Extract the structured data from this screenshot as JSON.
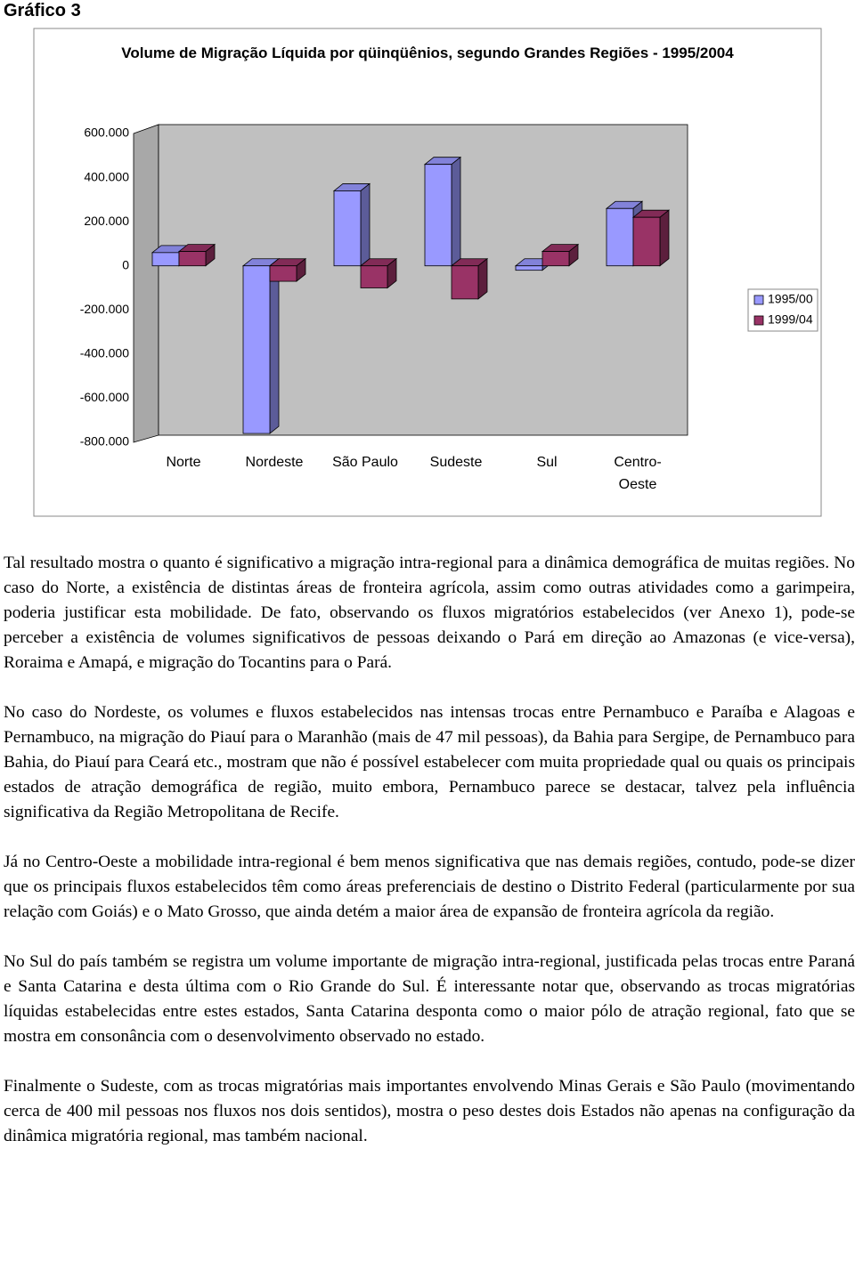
{
  "heading": "Gráfico 3",
  "chart_data": {
    "type": "bar3d",
    "title": "Volume de Migração Líquida por qüinqüênios, segundo Grandes Regiões - 1995/2004",
    "categories": [
      "Norte",
      "Nordeste",
      "São Paulo",
      "Sudeste",
      "Sul",
      "Centro-Oeste"
    ],
    "series": [
      {
        "name": "1995/00",
        "color": "#9999ff",
        "values": [
          60000,
          -760000,
          340000,
          460000,
          -20000,
          260000
        ]
      },
      {
        "name": "1999/04",
        "color": "#993366",
        "values": [
          65000,
          -70000,
          -100000,
          -150000,
          65000,
          220000
        ]
      }
    ],
    "ylim": [
      -800000,
      600000
    ],
    "yticks": [
      {
        "value": -800000,
        "label": "-800.000"
      },
      {
        "value": -600000,
        "label": "-600.000"
      },
      {
        "value": -400000,
        "label": "-400.000"
      },
      {
        "value": -200000,
        "label": "-200.000"
      },
      0,
      {
        "value": 200000,
        "label": "200.000"
      },
      {
        "value": 400000,
        "label": "400.000"
      },
      {
        "value": 600000,
        "label": "600.000"
      }
    ],
    "grid": false,
    "legend": "right"
  },
  "paragraphs": [
    "Tal resultado mostra o quanto é significativo a migração intra-regional para a dinâmica demográfica de muitas regiões. No caso do Norte, a existência de distintas áreas de fronteira agrícola, assim como outras atividades como a garimpeira, poderia justificar esta mobilidade. De fato, observando os fluxos migratórios estabelecidos (ver Anexo 1), pode-se perceber a existência de volumes significativos de pessoas deixando o Pará em direção ao Amazonas (e vice-versa), Roraima e Amapá, e migração do Tocantins para o Pará.",
    "No caso do Nordeste, os volumes e fluxos estabelecidos nas intensas trocas entre Pernambuco e Paraíba e Alagoas e Pernambuco, na migração do Piauí para o Maranhão (mais de 47 mil pessoas), da Bahia para Sergipe, de Pernambuco para Bahia, do Piauí para Ceará etc., mostram que não é possível estabelecer com muita propriedade qual ou quais os principais estados de atração demográfica de região, muito embora, Pernambuco parece se destacar, talvez pela influência significativa da Região Metropolitana de Recife.",
    "Já no Centro-Oeste a mobilidade intra-regional é bem menos significativa que nas demais regiões, contudo, pode-se dizer que os principais fluxos estabelecidos têm como áreas preferenciais de destino o Distrito Federal (particularmente por sua relação com Goiás) e o Mato Grosso, que ainda detém a maior área de expansão de fronteira agrícola da região.",
    "No Sul do país também se registra um volume importante de migração intra-regional, justificada pelas trocas entre Paraná e Santa Catarina e desta última com o Rio Grande do Sul. É interessante notar que, observando as trocas migratórias líquidas estabelecidas entre estes estados, Santa Catarina desponta como o maior pólo de atração regional, fato que se mostra em consonância com o desenvolvimento observado no estado.",
    "Finalmente o Sudeste, com as trocas migratórias mais importantes envolvendo Minas Gerais e São Paulo (movimentando cerca de 400 mil pessoas nos fluxos nos dois sentidos), mostra o peso destes dois Estados não apenas na configuração da dinâmica migratória regional, mas também nacional."
  ]
}
